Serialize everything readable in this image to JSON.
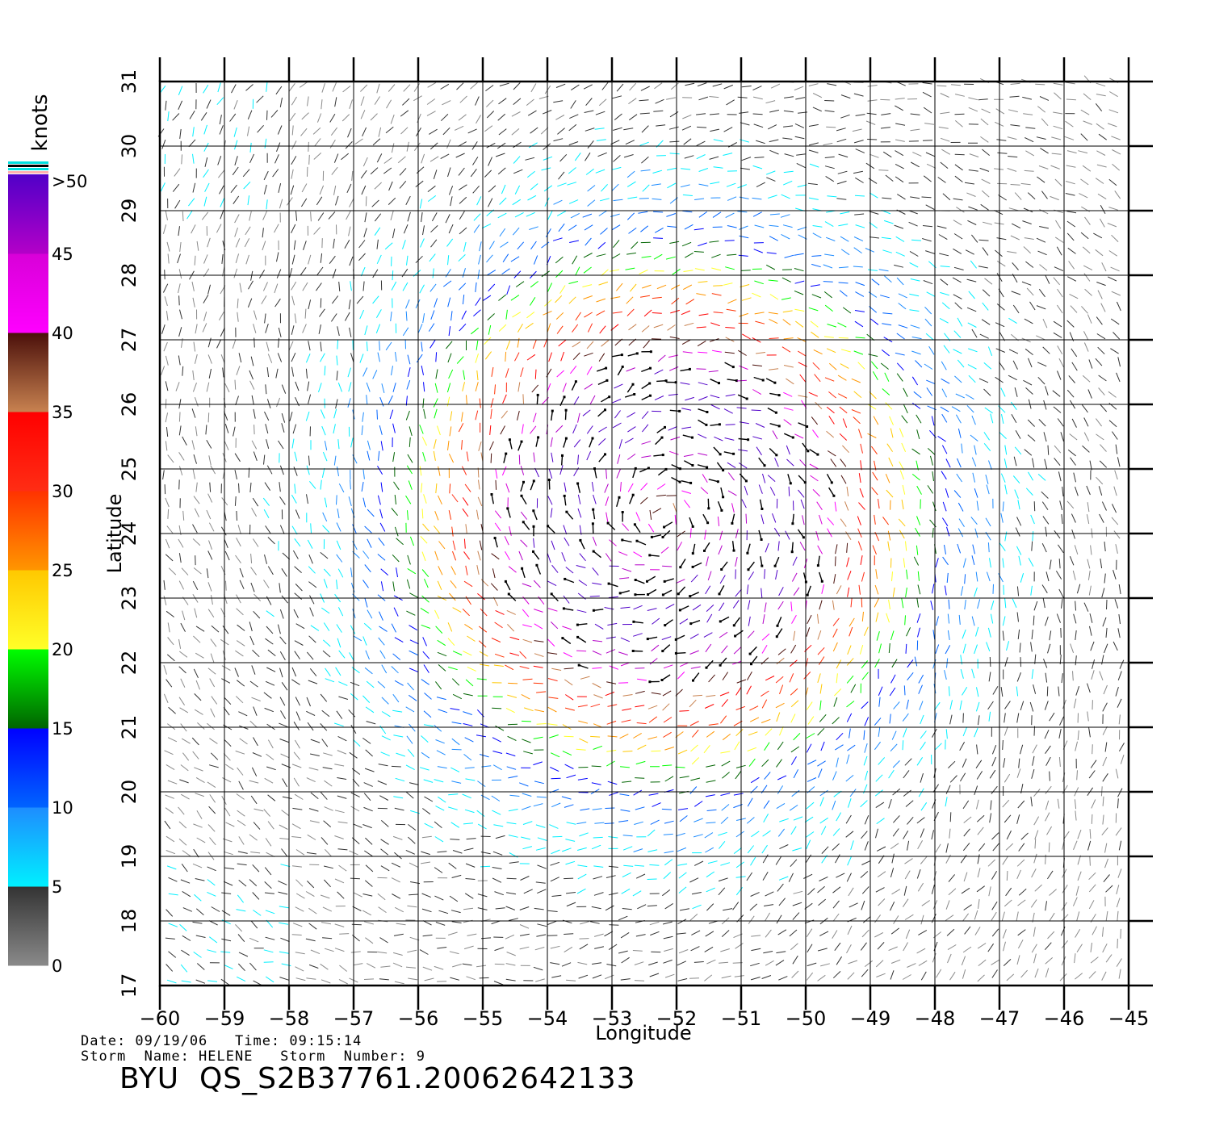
{
  "map": {
    "x_label": "Longitude",
    "y_label": "Latitude",
    "lon_range": [
      -60,
      -45
    ],
    "lat_range": [
      17,
      31
    ],
    "lon_ticks": [
      "−60",
      "−59",
      "−58",
      "−57",
      "−56",
      "−55",
      "−54",
      "−53",
      "−52",
      "−51",
      "−50",
      "−49",
      "−48",
      "−47",
      "−46",
      "−45"
    ],
    "lat_ticks": [
      "17",
      "18",
      "19",
      "20",
      "21",
      "22",
      "23",
      "24",
      "25",
      "26",
      "27",
      "28",
      "29",
      "30",
      "31"
    ],
    "grid": true,
    "storm_center_approx": [
      -52.2,
      24.3
    ],
    "flagged_vector_color": "#000000"
  },
  "colorbar": {
    "unit": "knots",
    "labels": [
      ">50",
      "45",
      "40",
      "35",
      "30",
      "25",
      "20",
      "15",
      "10",
      "5",
      "0"
    ],
    "bands": [
      {
        "range": [
          0,
          5
        ],
        "color_top": "#333333",
        "color_bottom": "#8a8a8a"
      },
      {
        "range": [
          5,
          10
        ],
        "color_top": "#1e8cff",
        "color_bottom": "#00f0ff"
      },
      {
        "range": [
          10,
          15
        ],
        "color_top": "#0000ff",
        "color_bottom": "#0064ff"
      },
      {
        "range": [
          15,
          20
        ],
        "color_top": "#00ff00",
        "color_bottom": "#006400"
      },
      {
        "range": [
          20,
          25
        ],
        "color_top": "#ffc800",
        "color_bottom": "#ffff28"
      },
      {
        "range": [
          25,
          30
        ],
        "color_top": "#ff3200",
        "color_bottom": "#ff9600"
      },
      {
        "range": [
          30,
          35
        ],
        "color_top": "#ff0000",
        "color_bottom": "#ff2d14"
      },
      {
        "range": [
          35,
          40
        ],
        "color_top": "#4a0f0a",
        "color_bottom": "#c88250"
      },
      {
        "range": [
          40,
          45
        ],
        "color_top": "#d800d8",
        "color_bottom": "#ff00ff"
      },
      {
        "range": [
          45,
          50
        ],
        "color_top": "#5000c8",
        "color_bottom": "#b400c8"
      }
    ]
  },
  "info": {
    "date_line": "Date: 09/19/06   Time: 09:15:14",
    "storm_line": "Storm  Name: HELENE   Storm  Number: 9",
    "file_id": "BYU  QS_S2B37761.20062642133"
  }
}
